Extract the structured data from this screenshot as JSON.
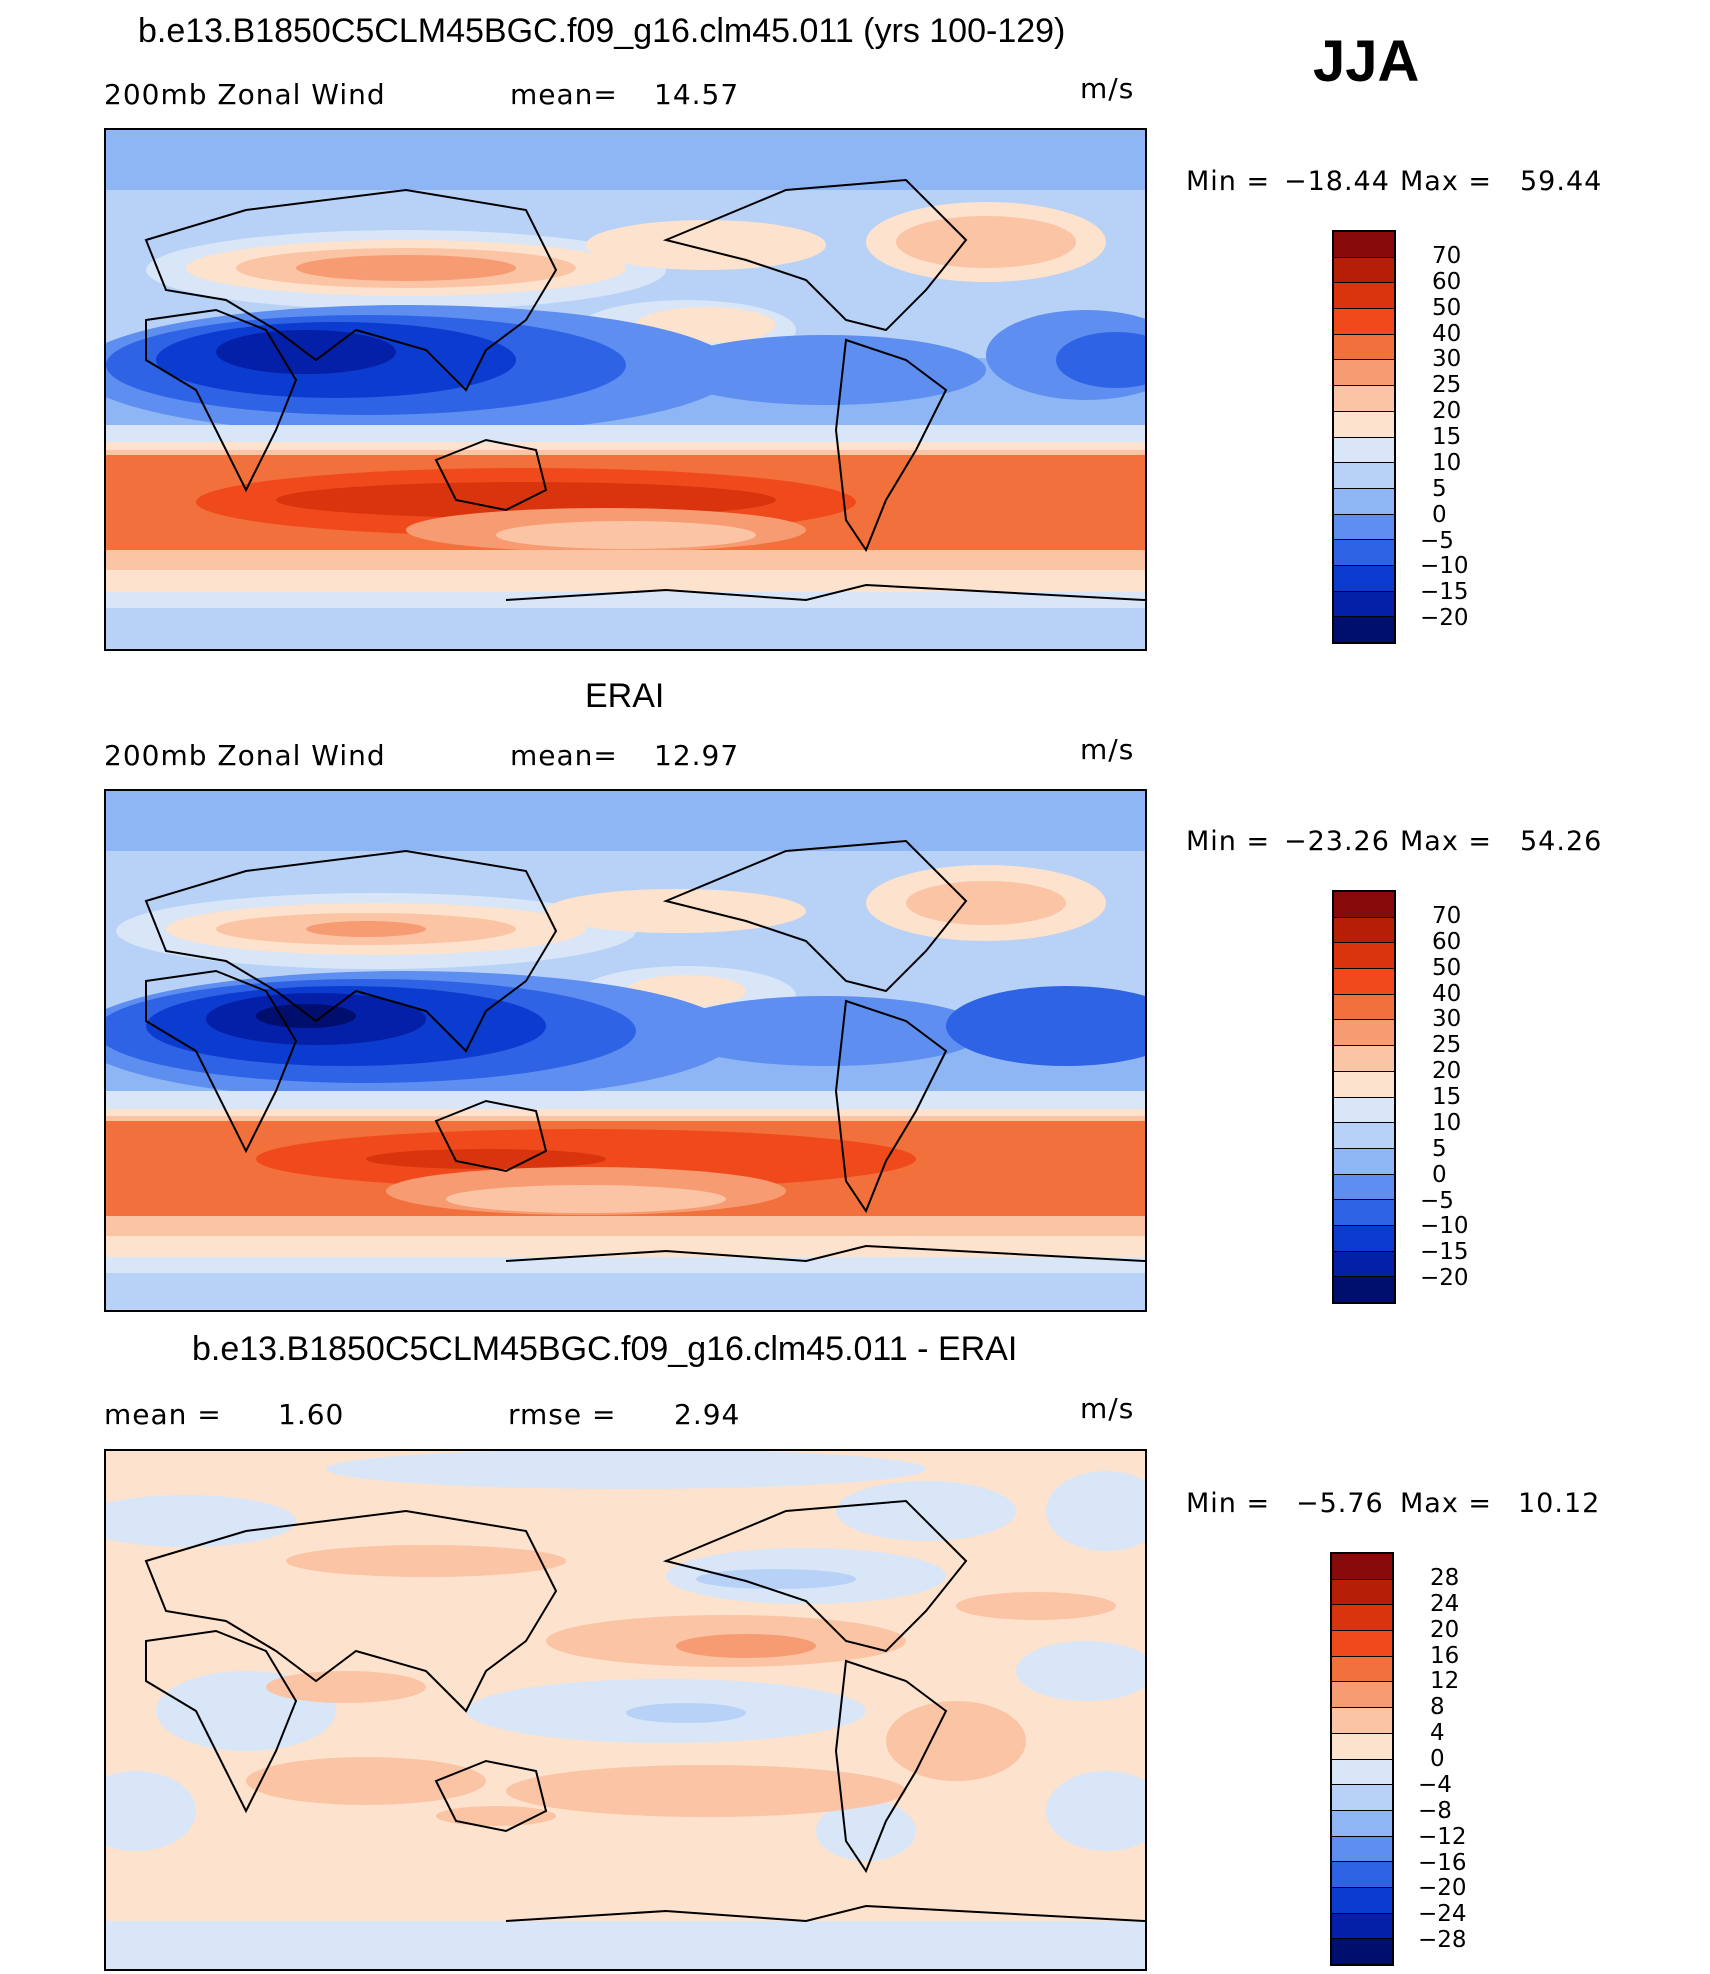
{
  "season": "JJA",
  "units": "m/s",
  "land_outline_color": "#000000",
  "panels": [
    {
      "title": "b.e13.B1850C5CLM45BGC.f09_g16.clm45.011 (yrs 100-129)",
      "variable": "200mb Zonal Wind",
      "stat_label": "mean=",
      "stat_value": "14.57",
      "min_label": "Min =",
      "min_value": "−18.44",
      "max_label": "Max =",
      "max_value": "59.44",
      "colorbar": [
        "70",
        "60",
        "50",
        "40",
        "30",
        "25",
        "20",
        "15",
        "10",
        "5",
        "0",
        "−5",
        "−10",
        "−15",
        "−20"
      ]
    },
    {
      "title": "ERAI",
      "variable": "200mb Zonal Wind",
      "stat_label": "mean=",
      "stat_value": "12.97",
      "min_label": "Min =",
      "min_value": "−23.26",
      "max_label": "Max =",
      "max_value": "54.26",
      "colorbar": [
        "70",
        "60",
        "50",
        "40",
        "30",
        "25",
        "20",
        "15",
        "10",
        "5",
        "0",
        "−5",
        "−10",
        "−15",
        "−20"
      ]
    },
    {
      "title": "b.e13.B1850C5CLM45BGC.f09_g16.clm45.011 - ERAI",
      "stat_label": "mean =",
      "stat_value": "1.60",
      "stat2_label": "rmse =",
      "stat2_value": "2.94",
      "min_label": "Min =",
      "min_value": "−5.76",
      "max_label": "Max =",
      "max_value": "10.12",
      "colorbar": [
        "28",
        "24",
        "20",
        "16",
        "12",
        "8",
        "4",
        "0",
        "−4",
        "−8",
        "−12",
        "−16",
        "−20",
        "−24",
        "−28"
      ]
    }
  ],
  "palette": [
    "#890a0a",
    "#b71e06",
    "#d9340d",
    "#f04a1c",
    "#f2703c",
    "#f79b72",
    "#fbc4a4",
    "#fde2cd",
    "#d8e6f8",
    "#b7d1f7",
    "#8eb6f5",
    "#5d8ef0",
    "#2f63e6",
    "#0c3bd0",
    "#041fa8",
    "#000e6e"
  ]
}
